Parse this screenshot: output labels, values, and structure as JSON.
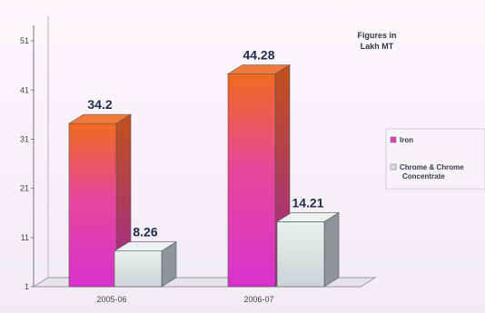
{
  "chart_data": {
    "type": "bar",
    "categories": [
      "2005-06",
      "2006-07"
    ],
    "series": [
      {
        "name": "Iron",
        "values": [
          34.2,
          44.28
        ],
        "color": "#e33fb8"
      },
      {
        "name": "Chrome & Chrome Concentrate",
        "values": [
          8.26,
          14.21
        ],
        "color": "#d9dfe0"
      }
    ],
    "value_labels": [
      [
        "34.2",
        "44.28"
      ],
      [
        "8.26",
        "14.21"
      ]
    ],
    "y_ticks": [
      "1",
      "11",
      "21",
      "31",
      "41",
      "51"
    ],
    "ylim": [
      1,
      56
    ],
    "annotation": "Figures in Lakh MT",
    "legend_labels": [
      "Iron",
      "Chrome & Chrome Concentrate"
    ],
    "legend_position": "right",
    "style": "3d"
  }
}
